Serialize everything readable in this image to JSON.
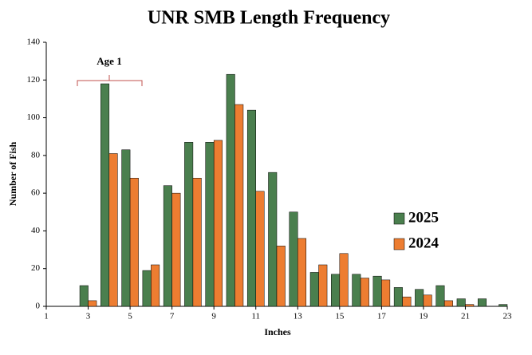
{
  "chart_data": {
    "type": "bar",
    "title": "UNR SMB Length Frequency",
    "x_label": "Inches",
    "y_label": "Number of Fish",
    "annotation": "Age 1",
    "x": [
      3,
      4,
      5,
      6,
      7,
      8,
      9,
      10,
      11,
      12,
      13,
      14,
      15,
      16,
      17,
      18,
      19,
      20,
      21,
      22,
      23
    ],
    "series": [
      {
        "name": "2025",
        "color": "#4a7f4e",
        "values": [
          11,
          118,
          83,
          19,
          64,
          87,
          87,
          123,
          104,
          71,
          50,
          18,
          17,
          17,
          16,
          10,
          9,
          11,
          4,
          4,
          1
        ]
      },
      {
        "name": "2024",
        "color": "#ed7d31",
        "values": [
          3,
          81,
          68,
          22,
          60,
          68,
          88,
          107,
          61,
          32,
          36,
          22,
          28,
          15,
          14,
          5,
          6,
          3,
          1,
          0,
          0
        ]
      }
    ],
    "xlim": [
      1,
      23
    ],
    "xticks": [
      1,
      3,
      5,
      7,
      9,
      11,
      13,
      15,
      17,
      19,
      21,
      23
    ],
    "ylim": [
      0,
      140
    ],
    "yticks": [
      0,
      20,
      40,
      60,
      80,
      100,
      120,
      140
    ],
    "grid": false,
    "legend": "right"
  }
}
